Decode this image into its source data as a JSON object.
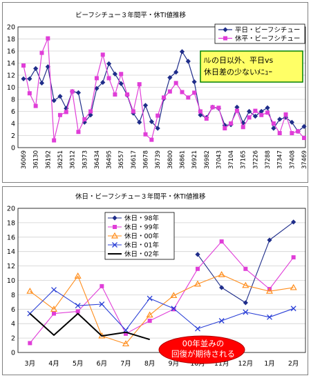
{
  "charts": [
    {
      "id": "top",
      "chart_data": {
        "type": "line",
        "title": "ビーフシチュー３年間平・休TI値推移",
        "ylim": [
          0,
          20
        ],
        "yticks": [
          0,
          2,
          4,
          6,
          8,
          10,
          12,
          14,
          16,
          18,
          20
        ],
        "grid": true,
        "legend": "top-right",
        "x_tick_labels": [
          "36069",
          "36130",
          "36192",
          "36251",
          "36312",
          "36373",
          "36434",
          "36495",
          "36557",
          "36617",
          "36678",
          "36739",
          "36800",
          "36861",
          "36921",
          "36982",
          "37043",
          "37104",
          "37165",
          "37226",
          "37288",
          "37347",
          "37408",
          "37469"
        ],
        "series": [
          {
            "name": "平日・ビーフシチュー",
            "color": "#1f2d8a",
            "marker": "diamond",
            "values": [
              11.4,
              11.4,
              13.1,
              10.7,
              13.4,
              7.8,
              8.5,
              6.5,
              9.3,
              9.1,
              4.2,
              5.4,
              9.8,
              10.8,
              13.9,
              12.2,
              10.6,
              8.7,
              5.7,
              4.2,
              7.0,
              4.3,
              3.2,
              8.1,
              11.6,
              12.5,
              15.9,
              14.3,
              10.9,
              5.4,
              5.0,
              6.7,
              6.5,
              3.7,
              3.8,
              6.7,
              4.1,
              6.0,
              5.2,
              6.0,
              6.6,
              3.2,
              4.7,
              5.0,
              4.2,
              2.7,
              3.5
            ]
          },
          {
            "name": "休平・ビーフシチュー",
            "color": "#e03ed8",
            "marker": "square",
            "values": [
              13.6,
              9.0,
              6.9,
              15.7,
              18.1,
              1.2,
              5.4,
              5.9,
              9.3,
              2.6,
              4.7,
              6.0,
              11.5,
              15.4,
              11.5,
              8.8,
              12.2,
              8.8,
              6.0,
              10.5,
              2.2,
              1.3,
              5.3,
              8.3,
              9.3,
              10.7,
              9.2,
              8.3,
              9.1,
              6.0,
              4.8,
              6.7,
              6.6,
              3.2,
              4.0,
              6.1,
              3.4,
              5.0,
              6.1,
              5.4,
              5.8,
              4.0,
              2.4,
              5.5,
              2.4,
              2.7,
              1.6
            ]
          }
        ],
        "annotations": [
          {
            "text": "ﾊﾚの日以外、平日vs休日差の少ないﾒﾆｭｰ",
            "fill": "#ffff66",
            "border": "#008000"
          }
        ]
      }
    },
    {
      "id": "bottom",
      "chart_data": {
        "type": "line",
        "title": "休日・ビーフシチュー３年間平・休TI値推移",
        "ylim": [
          0,
          20
        ],
        "yticks": [
          0,
          2,
          4,
          6,
          8,
          10,
          12,
          14,
          16,
          18,
          20
        ],
        "grid": true,
        "legend": "top-left",
        "categories": [
          "3月",
          "4月",
          "5月",
          "6月",
          "7月",
          "8月",
          "9月",
          "10月",
          "11月",
          "12月",
          "1月",
          "2月"
        ],
        "series": [
          {
            "name": "休日・98年",
            "color": "#1f2d8a",
            "marker": "diamond",
            "values": [
              null,
              null,
              null,
              null,
              null,
              null,
              null,
              13.6,
              9.0,
              6.9,
              15.6,
              18.1
            ]
          },
          {
            "name": "休日・99年",
            "color": "#e03ed8",
            "marker": "square",
            "values": [
              1.3,
              5.4,
              5.7,
              9.2,
              2.6,
              4.4,
              6.0,
              11.6,
              15.4,
              11.6,
              8.8,
              13.2
            ]
          },
          {
            "name": "休日・00年",
            "color": "#ff8c1a",
            "marker": "triangle",
            "values": [
              8.5,
              6.0,
              10.6,
              2.3,
              1.2,
              5.2,
              7.9,
              9.5,
              10.8,
              9.3,
              8.5,
              9.0
            ]
          },
          {
            "name": "休日・01年",
            "color": "#2a3fd6",
            "marker": "x",
            "values": [
              5.4,
              8.7,
              6.5,
              6.7,
              3.1,
              7.5,
              6.1,
              3.3,
              4.4,
              5.6,
              4.9,
              6.1
            ]
          },
          {
            "name": "休日・02年",
            "color": "#000000",
            "marker": "none",
            "values": [
              5.4,
              2.4,
              5.4,
              2.3,
              2.8,
              1.8,
              null,
              null,
              null,
              null,
              null,
              null
            ]
          }
        ],
        "annotations": [
          {
            "text": "00年並みの回復が期待される",
            "fill": "#ff0000",
            "text_color": "#ffffff"
          }
        ]
      }
    }
  ]
}
